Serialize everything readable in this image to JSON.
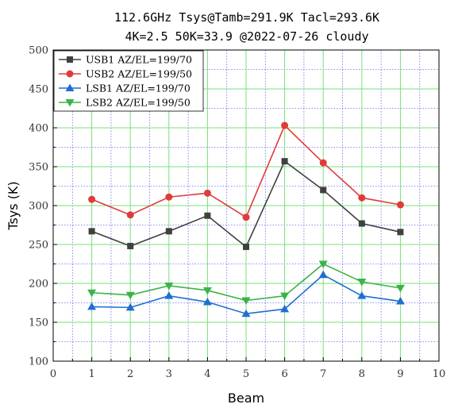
{
  "chart_data": {
    "type": "line",
    "title_lines": [
      "112.6GHz Tsys@Tamb=291.9K Tacl=293.6K",
      "4K=2.5 50K=33.9 @2022-07-26 cloudy"
    ],
    "xlabel": "Beam",
    "ylabel": "Tsys (K)",
    "xlim": [
      0,
      10
    ],
    "ylim": [
      100,
      500
    ],
    "x_ticks": [
      "0",
      "1",
      "2",
      "3",
      "4",
      "5",
      "6",
      "7",
      "8",
      "9",
      "10"
    ],
    "y_ticks": [
      "100",
      "150",
      "200",
      "250",
      "300",
      "350",
      "400",
      "450",
      "500"
    ],
    "grid": true,
    "legend_position": "top-left",
    "x": [
      1,
      2,
      3,
      4,
      5,
      6,
      7,
      8,
      9
    ],
    "series": [
      {
        "name": "USB1 AZ/EL=199/70",
        "marker": "square",
        "color": "#404040",
        "values": [
          267,
          248,
          267,
          287,
          247,
          357,
          320,
          277,
          266
        ]
      },
      {
        "name": "USB2 AZ/EL=199/50",
        "marker": "circle",
        "color": "#e03b3b",
        "values": [
          308,
          288,
          311,
          316,
          285,
          403,
          355,
          310,
          301
        ]
      },
      {
        "name": "LSB1 AZ/EL=199/70",
        "marker": "triangle-up",
        "color": "#1f6fd1",
        "values": [
          170,
          169,
          184,
          176,
          161,
          167,
          211,
          184,
          177
        ]
      },
      {
        "name": "LSB2 AZ/EL=199/50",
        "marker": "triangle-down",
        "color": "#3cb34a",
        "values": [
          188,
          185,
          197,
          191,
          178,
          184,
          225,
          202,
          194
        ]
      }
    ]
  }
}
